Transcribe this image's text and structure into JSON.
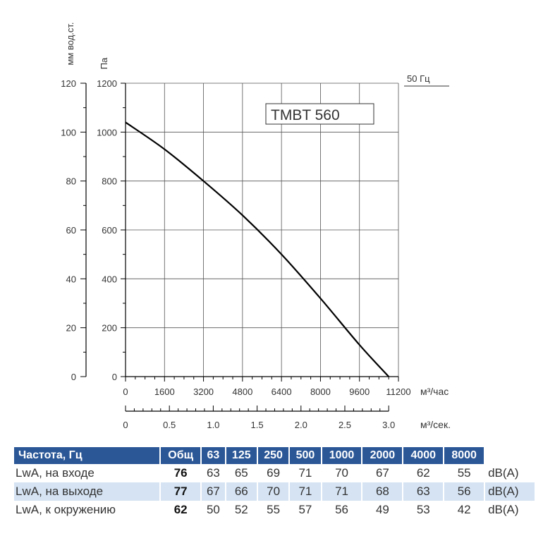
{
  "chart_data": {
    "type": "line",
    "title": "TMBT 560",
    "frequency_label": "50 Гц",
    "y_axis_left": {
      "label": "мм вод.ст.",
      "ticks": [
        0,
        20,
        40,
        60,
        80,
        100,
        120
      ],
      "range": [
        0,
        120
      ]
    },
    "y_axis_right": {
      "label": "Па",
      "ticks": [
        0,
        200,
        400,
        600,
        800,
        1000,
        1200
      ],
      "range": [
        0,
        1200
      ]
    },
    "x_axis_primary": {
      "label": "м³/час",
      "ticks": [
        0,
        1600,
        3200,
        4800,
        6400,
        8000,
        9600,
        11200
      ],
      "range": [
        0,
        11200
      ]
    },
    "x_axis_secondary": {
      "label": "м³/сек.",
      "ticks": [
        "0",
        "0.5",
        "1.0",
        "1.5",
        "2.0",
        "2.5",
        "3.0"
      ],
      "values": [
        0,
        0.5,
        1.0,
        1.5,
        2.0,
        2.5,
        3.0
      ]
    },
    "grid": true,
    "series": [
      {
        "x": [
          0,
          1600,
          3200,
          4800,
          6400,
          8000,
          9600,
          10800
        ],
        "y": [
          1040,
          930,
          800,
          660,
          500,
          320,
          130,
          0
        ]
      }
    ]
  },
  "noise_table": {
    "header": [
      "Частота, Гц",
      "Общ",
      "63",
      "125",
      "250",
      "500",
      "1000",
      "2000",
      "4000",
      "8000"
    ],
    "rows": [
      {
        "label": "LwA, на входе",
        "total": "76",
        "values": [
          "63",
          "65",
          "69",
          "71",
          "70",
          "67",
          "62",
          "55"
        ],
        "unit": "dB(A)"
      },
      {
        "label": "LwA, на выходе",
        "total": "77",
        "values": [
          "67",
          "66",
          "70",
          "71",
          "71",
          "68",
          "63",
          "56"
        ],
        "unit": "dB(A)"
      },
      {
        "label": "LwA, к окружению",
        "total": "62",
        "values": [
          "50",
          "52",
          "55",
          "57",
          "56",
          "49",
          "53",
          "42"
        ],
        "unit": "dB(A)"
      }
    ]
  }
}
